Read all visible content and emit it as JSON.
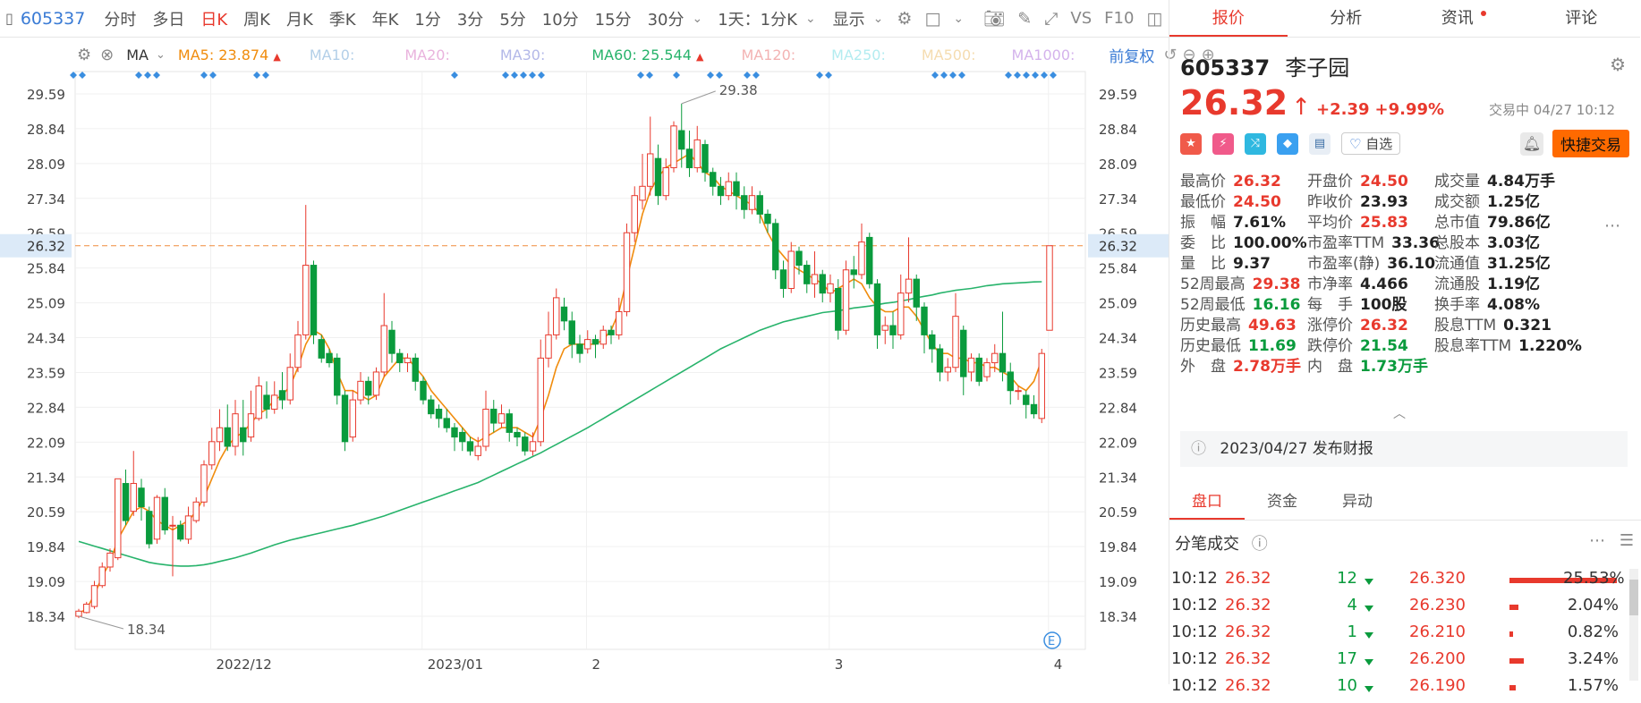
{
  "toolbar": {
    "code": "605337",
    "items": [
      "分时",
      "多日",
      "日K",
      "周K",
      "月K",
      "季K",
      "年K",
      "1分",
      "3分",
      "5分",
      "10分",
      "15分",
      "30分"
    ],
    "active": "日K",
    "multi": "1天：1分K",
    "display": "显示"
  },
  "ma_bar": {
    "indicator": "MA",
    "ma5": "MA5: 23.874",
    "ma10": "MA10:",
    "ma20": "MA20:",
    "ma30": "MA30:",
    "ma60": "MA60: 25.544",
    "ma120": "MA120:",
    "ma250": "MA250:",
    "ma500": "MA500:",
    "ma1000": "MA1000:",
    "adjust": "前复权"
  },
  "chart_data": {
    "type": "candlestick",
    "y_ticks": [
      "29.59",
      "28.84",
      "28.09",
      "27.34",
      "26.59",
      "25.84",
      "25.09",
      "24.34",
      "23.59",
      "22.84",
      "22.09",
      "21.34",
      "20.59",
      "19.84",
      "19.09",
      "18.34"
    ],
    "ylim": [
      18.1,
      29.9
    ],
    "x_labels": [
      "2022/12",
      "2023/01",
      "2",
      "3",
      "4"
    ],
    "current_price_label": "26.32",
    "high_label": "29.38",
    "low_label": "18.34",
    "candles": [
      [
        18.34,
        18.45,
        18.3,
        18.5
      ],
      [
        18.42,
        18.6,
        18.4,
        18.65
      ],
      [
        18.55,
        19.0,
        18.5,
        19.1
      ],
      [
        19.0,
        19.4,
        18.95,
        19.5
      ],
      [
        19.4,
        19.7,
        19.3,
        19.8
      ],
      [
        19.6,
        21.3,
        19.55,
        21.3
      ],
      [
        21.2,
        20.4,
        20.3,
        21.5
      ],
      [
        20.6,
        21.2,
        20.5,
        21.9
      ],
      [
        21.1,
        20.7,
        20.4,
        21.3
      ],
      [
        20.6,
        19.9,
        19.8,
        20.7
      ],
      [
        20.0,
        20.9,
        19.9,
        20.95
      ],
      [
        20.9,
        20.2,
        20.1,
        21.1
      ],
      [
        20.3,
        20.3,
        19.2,
        20.5
      ],
      [
        20.3,
        20.0,
        19.95,
        20.4
      ],
      [
        20.0,
        20.5,
        19.9,
        20.7
      ],
      [
        20.4,
        20.8,
        20.35,
        20.9
      ],
      [
        20.8,
        21.6,
        20.7,
        21.7
      ],
      [
        21.6,
        22.1,
        21.5,
        22.4
      ],
      [
        22.1,
        22.4,
        21.9,
        22.8
      ],
      [
        22.4,
        22.0,
        21.9,
        22.9
      ],
      [
        22.0,
        22.7,
        21.8,
        23.0
      ],
      [
        22.4,
        22.1,
        21.8,
        23.0
      ],
      [
        22.2,
        22.7,
        22.1,
        23.2
      ],
      [
        22.6,
        23.3,
        22.55,
        23.5
      ],
      [
        23.1,
        22.8,
        22.6,
        23.4
      ],
      [
        22.8,
        23.1,
        22.7,
        23.4
      ],
      [
        23.2,
        23.0,
        22.8,
        23.6
      ],
      [
        23.0,
        23.7,
        22.9,
        24.0
      ],
      [
        23.7,
        24.4,
        23.6,
        24.7
      ],
      [
        24.4,
        25.9,
        24.3,
        27.2
      ],
      [
        25.9,
        24.4,
        24.2,
        26.0
      ],
      [
        24.3,
        23.9,
        23.8,
        24.4
      ],
      [
        24.0,
        23.8,
        23.7,
        24.1
      ],
      [
        23.9,
        23.1,
        22.9,
        24.0
      ],
      [
        23.1,
        22.1,
        21.9,
        23.2
      ],
      [
        22.2,
        23.0,
        22.1,
        23.2
      ],
      [
        23.0,
        23.4,
        22.9,
        23.6
      ],
      [
        23.4,
        23.1,
        22.9,
        23.5
      ],
      [
        23.1,
        23.6,
        23.0,
        23.7
      ],
      [
        23.6,
        24.6,
        23.5,
        25.3
      ],
      [
        24.5,
        24.0,
        23.8,
        24.7
      ],
      [
        24.0,
        23.8,
        23.6,
        24.1
      ],
      [
        23.8,
        23.9,
        23.6,
        24.0
      ],
      [
        23.9,
        23.4,
        23.2,
        24.0
      ],
      [
        23.4,
        23.0,
        22.9,
        23.5
      ],
      [
        23.0,
        22.7,
        22.6,
        23.1
      ],
      [
        22.8,
        22.6,
        22.4,
        22.9
      ],
      [
        22.6,
        22.4,
        22.3,
        22.8
      ],
      [
        22.4,
        22.2,
        21.9,
        22.5
      ],
      [
        22.3,
        22.1,
        21.9,
        22.4
      ],
      [
        22.1,
        21.9,
        21.8,
        22.2
      ],
      [
        21.8,
        22.0,
        21.7,
        22.2
      ],
      [
        22.0,
        22.8,
        21.9,
        23.2
      ],
      [
        22.8,
        22.5,
        22.3,
        23.0
      ],
      [
        22.5,
        22.7,
        22.4,
        22.9
      ],
      [
        22.7,
        22.3,
        22.1,
        22.8
      ],
      [
        22.3,
        22.2,
        22.0,
        22.4
      ],
      [
        22.2,
        21.9,
        21.8,
        22.3
      ],
      [
        21.9,
        22.1,
        21.8,
        22.3
      ],
      [
        22.1,
        23.9,
        22.0,
        24.3
      ],
      [
        23.9,
        24.4,
        23.7,
        24.9
      ],
      [
        24.4,
        25.2,
        24.3,
        25.4
      ],
      [
        25.0,
        24.7,
        24.5,
        25.2
      ],
      [
        24.7,
        24.2,
        23.9,
        24.9
      ],
      [
        24.2,
        24.0,
        23.8,
        24.4
      ],
      [
        24.1,
        24.3,
        24.0,
        24.5
      ],
      [
        24.3,
        24.2,
        23.9,
        24.4
      ],
      [
        24.2,
        24.5,
        24.1,
        24.6
      ],
      [
        24.5,
        24.4,
        24.2,
        24.6
      ],
      [
        24.4,
        24.9,
        24.3,
        25.2
      ],
      [
        24.9,
        26.6,
        24.8,
        26.8
      ],
      [
        26.6,
        27.4,
        26.4,
        27.6
      ],
      [
        27.3,
        27.6,
        27.1,
        28.3
      ],
      [
        27.6,
        28.3,
        27.4,
        29.1
      ],
      [
        28.2,
        27.4,
        27.2,
        28.5
      ],
      [
        27.4,
        28.0,
        27.3,
        28.2
      ],
      [
        28.0,
        28.9,
        27.9,
        29.0
      ],
      [
        28.8,
        28.4,
        28.0,
        29.38
      ],
      [
        28.4,
        28.0,
        27.8,
        28.8
      ],
      [
        28.0,
        28.6,
        27.9,
        28.9
      ],
      [
        28.5,
        27.9,
        27.7,
        28.6
      ],
      [
        27.9,
        27.6,
        27.4,
        28.0
      ],
      [
        27.6,
        27.4,
        27.2,
        27.8
      ],
      [
        27.4,
        27.7,
        27.3,
        27.9
      ],
      [
        27.7,
        27.4,
        27.1,
        27.9
      ],
      [
        27.4,
        27.1,
        26.9,
        27.6
      ],
      [
        27.1,
        27.4,
        27.0,
        27.6
      ],
      [
        27.4,
        27.0,
        26.8,
        27.5
      ],
      [
        27.0,
        26.8,
        26.6,
        27.1
      ],
      [
        26.8,
        25.8,
        25.6,
        26.9
      ],
      [
        25.8,
        25.4,
        25.2,
        26.0
      ],
      [
        25.4,
        26.2,
        25.3,
        26.4
      ],
      [
        26.2,
        25.9,
        25.7,
        26.3
      ],
      [
        25.9,
        25.5,
        25.3,
        26.0
      ],
      [
        25.5,
        25.7,
        25.2,
        26.2
      ],
      [
        25.7,
        25.3,
        25.1,
        25.8
      ],
      [
        25.3,
        25.5,
        25.1,
        25.7
      ],
      [
        25.4,
        24.5,
        24.3,
        25.6
      ],
      [
        24.5,
        25.8,
        24.4,
        26.0
      ],
      [
        25.8,
        25.7,
        25.4,
        26.1
      ],
      [
        25.7,
        26.4,
        25.6,
        26.8
      ],
      [
        26.5,
        25.5,
        25.4,
        26.6
      ],
      [
        25.5,
        24.4,
        24.1,
        25.6
      ],
      [
        24.5,
        24.6,
        24.2,
        24.8
      ],
      [
        24.6,
        24.4,
        24.1,
        24.9
      ],
      [
        24.4,
        25.3,
        24.3,
        25.7
      ],
      [
        25.3,
        25.6,
        25.1,
        26.5
      ],
      [
        25.6,
        25.0,
        24.7,
        25.7
      ],
      [
        25.0,
        24.4,
        24.0,
        25.1
      ],
      [
        24.4,
        24.1,
        23.8,
        24.5
      ],
      [
        24.1,
        23.6,
        23.4,
        24.2
      ],
      [
        23.6,
        23.7,
        23.4,
        23.9
      ],
      [
        23.7,
        24.8,
        23.6,
        25.3
      ],
      [
        24.5,
        23.5,
        23.1,
        24.6
      ],
      [
        23.6,
        23.9,
        23.4,
        24.0
      ],
      [
        23.9,
        23.4,
        23.3,
        24.0
      ],
      [
        23.5,
        23.8,
        23.4,
        23.9
      ],
      [
        23.8,
        24.0,
        23.6,
        24.2
      ],
      [
        24.0,
        23.6,
        23.4,
        24.9
      ],
      [
        23.6,
        23.2,
        22.9,
        23.8
      ],
      [
        23.2,
        23.2,
        23.0,
        23.3
      ],
      [
        23.1,
        22.9,
        22.6,
        23.2
      ],
      [
        22.9,
        22.7,
        22.6,
        23.1
      ],
      [
        22.6,
        24.0,
        22.5,
        24.1
      ],
      [
        24.5,
        26.32,
        24.5,
        26.32
      ]
    ],
    "ma5": [
      18.4,
      18.5,
      18.8,
      19.2,
      19.5,
      20.0,
      20.3,
      20.6,
      20.7,
      20.6,
      20.4,
      20.3,
      20.2,
      20.3,
      20.4,
      20.6,
      20.9,
      21.3,
      21.7,
      22.0,
      22.2,
      22.3,
      22.5,
      22.7,
      22.8,
      23.0,
      23.1,
      23.3,
      23.7,
      24.2,
      24.5,
      24.4,
      24.1,
      23.6,
      23.2,
      23.2,
      23.1,
      23.0,
      23.1,
      23.5,
      23.7,
      23.9,
      23.9,
      23.7,
      23.5,
      23.2,
      23.0,
      22.8,
      22.6,
      22.4,
      22.2,
      22.1,
      22.2,
      22.3,
      22.4,
      22.4,
      22.4,
      22.3,
      22.2,
      22.6,
      23.1,
      23.7,
      24.1,
      24.2,
      24.2,
      24.2,
      24.2,
      24.3,
      24.5,
      24.9,
      25.6,
      26.3,
      27.0,
      27.5,
      27.8,
      28.0,
      28.1,
      28.2,
      28.3,
      28.1,
      27.9,
      27.8,
      27.6,
      27.5,
      27.4,
      27.3,
      27.2,
      27.0,
      26.6,
      26.3,
      26.1,
      25.9,
      25.8,
      25.7,
      25.6,
      25.5,
      25.3,
      25.4,
      25.5,
      25.6,
      25.5,
      25.2,
      25.0,
      24.9,
      24.9,
      25.0,
      25.0,
      24.8,
      24.5,
      24.2,
      24.0,
      24.0,
      23.9,
      23.9,
      23.8,
      23.8,
      23.7,
      23.7,
      23.6,
      23.5,
      23.3,
      23.2,
      23.4,
      23.87
    ],
    "ma60": [
      19.95,
      19.9,
      19.85,
      19.8,
      19.75,
      19.7,
      19.65,
      19.6,
      19.55,
      19.5,
      19.47,
      19.45,
      19.43,
      19.42,
      19.42,
      19.43,
      19.45,
      19.48,
      19.52,
      19.56,
      19.6,
      19.65,
      19.7,
      19.76,
      19.82,
      19.88,
      19.93,
      19.98,
      20.02,
      20.06,
      20.1,
      20.14,
      20.18,
      20.22,
      20.26,
      20.3,
      20.35,
      20.4,
      20.45,
      20.5,
      20.56,
      20.62,
      20.68,
      20.74,
      20.8,
      20.86,
      20.92,
      20.98,
      21.04,
      21.1,
      21.16,
      21.22,
      21.3,
      21.38,
      21.46,
      21.54,
      21.62,
      21.7,
      21.78,
      21.86,
      21.95,
      22.04,
      22.13,
      22.22,
      22.31,
      22.4,
      22.5,
      22.6,
      22.7,
      22.8,
      22.9,
      23.0,
      23.1,
      23.2,
      23.3,
      23.4,
      23.5,
      23.6,
      23.7,
      23.8,
      23.9,
      24.0,
      24.1,
      24.18,
      24.26,
      24.34,
      24.42,
      24.5,
      24.56,
      24.62,
      24.68,
      24.72,
      24.76,
      24.8,
      24.84,
      24.88,
      24.9,
      24.92,
      24.95,
      24.98,
      25.0,
      25.02,
      25.05,
      25.08,
      25.1,
      25.13,
      25.16,
      25.2,
      25.23,
      25.26,
      25.3,
      25.33,
      25.36,
      25.38,
      25.4,
      25.43,
      25.46,
      25.48,
      25.5,
      25.51,
      25.52,
      25.53,
      25.54,
      25.544
    ]
  },
  "diamond_groups": [
    [
      82,
      92
    ],
    [
      155,
      165,
      175
    ],
    [
      228,
      238
    ],
    [
      287,
      297
    ],
    [
      508
    ],
    [
      565,
      575,
      585,
      595,
      605
    ],
    [
      716,
      726
    ],
    [
      756
    ],
    [
      794,
      804
    ],
    [
      835,
      845
    ],
    [
      916,
      926
    ],
    [
      1045,
      1055,
      1065,
      1075
    ],
    [
      1127,
      1137,
      1147,
      1157,
      1167,
      1177
    ]
  ],
  "sidebar": {
    "tabs": [
      "报价",
      "分析",
      "资讯",
      "评论"
    ],
    "active_tab": "报价",
    "code": "605337",
    "name": "李子园",
    "price": "26.32",
    "change": "+2.39",
    "change_pct": "+9.99%",
    "status": "交易中 04/27 10:12",
    "watch_label": "自选",
    "fast_trade": "快捷交易",
    "stats": [
      {
        "label": "最高价",
        "value": "26.32",
        "color": "red"
      },
      {
        "label": "开盘价",
        "value": "24.50",
        "color": "red"
      },
      {
        "label": "成交量",
        "value": "4.84万手",
        "color": "dark"
      },
      {
        "label": "最低价",
        "value": "24.50",
        "color": "red"
      },
      {
        "label": "昨收价",
        "value": "23.93",
        "color": "dark"
      },
      {
        "label": "成交额",
        "value": "1.25亿",
        "color": "dark"
      },
      {
        "label": "振　幅",
        "value": "7.61%",
        "color": "dark"
      },
      {
        "label": "平均价",
        "value": "25.83",
        "color": "red"
      },
      {
        "label": "总市值",
        "value": "79.86亿",
        "color": "dark"
      },
      {
        "label": "委　比",
        "value": "100.00%",
        "color": "dark"
      },
      {
        "label": "市盈率TTM",
        "value": "33.36",
        "color": "dark"
      },
      {
        "label": "总股本",
        "value": "3.03亿",
        "color": "dark"
      },
      {
        "label": "量　比",
        "value": "9.37",
        "color": "dark"
      },
      {
        "label": "市盈率(静)",
        "value": "36.10",
        "color": "dark"
      },
      {
        "label": "流通值",
        "value": "31.25亿",
        "color": "dark"
      },
      {
        "label": "52周最高",
        "value": "29.38",
        "color": "red"
      },
      {
        "label": "市净率",
        "value": "4.466",
        "color": "dark"
      },
      {
        "label": "流通股",
        "value": "1.19亿",
        "color": "dark"
      },
      {
        "label": "52周最低",
        "value": "16.16",
        "color": "green"
      },
      {
        "label": "每　手",
        "value": "100股",
        "color": "dark"
      },
      {
        "label": "换手率",
        "value": "4.08%",
        "color": "dark"
      },
      {
        "label": "历史最高",
        "value": "49.63",
        "color": "red"
      },
      {
        "label": "涨停价",
        "value": "26.32",
        "color": "red"
      },
      {
        "label": "股息TTM",
        "value": "0.321",
        "color": "dark"
      },
      {
        "label": "历史最低",
        "value": "11.69",
        "color": "green"
      },
      {
        "label": "跌停价",
        "value": "21.54",
        "color": "green"
      },
      {
        "label": "股息率TTM",
        "value": "1.220%",
        "color": "dark"
      },
      {
        "label": "外　盘",
        "value": "2.78万手",
        "color": "red"
      },
      {
        "label": "内　盘",
        "value": "1.73万手",
        "color": "green"
      }
    ],
    "notice": "2023/04/27  发布财报",
    "subtabs": [
      "盘口",
      "资金",
      "异动"
    ],
    "active_subtab": "盘口",
    "ticks_title": "分笔成交",
    "ticks": [
      {
        "time": "10:12",
        "price": "26.32",
        "vol": "12",
        "bid": "26.320",
        "pct": "25.53%",
        "bar": 1.0
      },
      {
        "time": "10:12",
        "price": "26.32",
        "vol": "4",
        "bid": "26.230",
        "pct": "2.04%",
        "bar": 0.08
      },
      {
        "time": "10:12",
        "price": "26.32",
        "vol": "1",
        "bid": "26.210",
        "pct": "0.82%",
        "bar": 0.03
      },
      {
        "time": "10:12",
        "price": "26.32",
        "vol": "17",
        "bid": "26.200",
        "pct": "3.24%",
        "bar": 0.13
      },
      {
        "time": "10:12",
        "price": "26.32",
        "vol": "10",
        "bid": "26.190",
        "pct": "1.57%",
        "bar": 0.06
      }
    ]
  }
}
